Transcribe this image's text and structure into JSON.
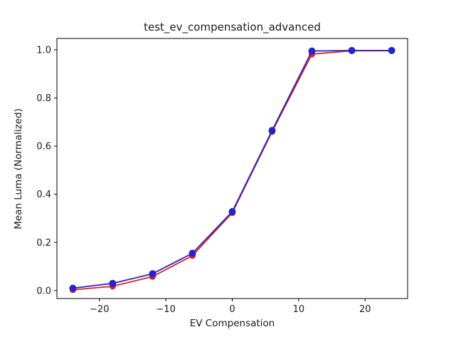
{
  "figure": {
    "background": "#ffffff"
  },
  "chart_data": {
    "type": "line",
    "title": "test_ev_compensation_advanced",
    "xlabel": "EV Compensation",
    "ylabel": "Mean Luma (Normalized)",
    "x": [
      -24,
      -18,
      -12,
      -6,
      0,
      6,
      12,
      18,
      24
    ],
    "series": [
      {
        "name": "red",
        "color": "#dd2222",
        "marker": "circle",
        "values": [
          0.003,
          0.018,
          0.058,
          0.145,
          0.323,
          0.66,
          0.982,
          0.996,
          0.996
        ]
      },
      {
        "name": "blue",
        "color": "#2424cc",
        "marker": "circle",
        "values": [
          0.01,
          0.03,
          0.07,
          0.155,
          0.328,
          0.665,
          0.995,
          0.997,
          0.997
        ]
      }
    ],
    "xticks": {
      "values": [
        -20,
        -10,
        0,
        10,
        20
      ],
      "labels": [
        "−20",
        "−10",
        "0",
        "10",
        "20"
      ]
    },
    "yticks": {
      "values": [
        0.0,
        0.2,
        0.4,
        0.6,
        0.8,
        1.0
      ],
      "labels": [
        "0.0",
        "0.2",
        "0.4",
        "0.6",
        "0.8",
        "1.0"
      ]
    },
    "xlim": [
      -26.4,
      26.4
    ],
    "ylim": [
      -0.033,
      1.047
    ],
    "grid": false,
    "legend": "none",
    "axis_color": "#000000"
  }
}
